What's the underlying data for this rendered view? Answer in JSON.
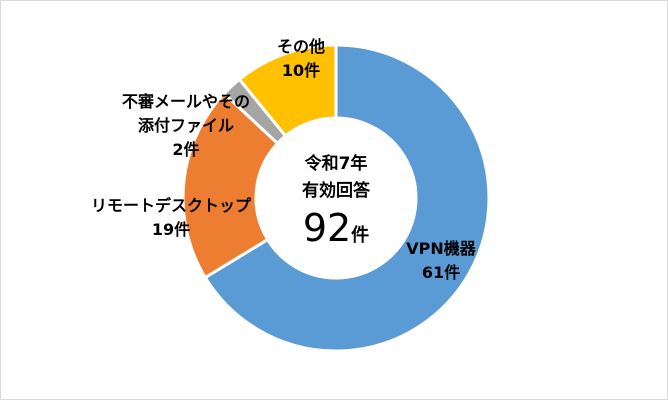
{
  "chart_data": {
    "type": "pie",
    "donut": true,
    "categories": [
      "VPN機器",
      "リモートデスクトップ",
      "不審メールやその添付ファイル",
      "その他"
    ],
    "values": [
      61,
      19,
      2,
      10
    ],
    "colors": [
      "#5B9BD5",
      "#ED7D31",
      "#A5A5A5",
      "#FFC000"
    ],
    "labels": [
      {
        "name_lines": [
          "VPN機器"
        ],
        "value": "61件"
      },
      {
        "name_lines": [
          "リモートデスクトップ"
        ],
        "value": "19件"
      },
      {
        "name_lines": [
          "不審メールやその",
          "添付ファイル"
        ],
        "value": "2件"
      },
      {
        "name_lines": [
          "その他"
        ],
        "value": "10件"
      }
    ],
    "start_angle": "top",
    "direction": "clockwise",
    "center_text": {
      "line1": "令和7年",
      "line2": "有効回答",
      "total": "92",
      "unit": "件"
    }
  }
}
